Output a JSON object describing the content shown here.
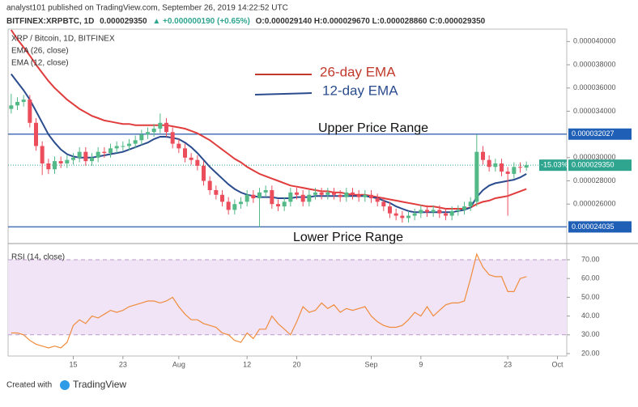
{
  "header": {
    "publisher": "analyst101 published on TradingView.com, September 26, 2019 14:22:52 UTC",
    "symbol": "BITFINEX:XRPBTC, 1D",
    "price": "0.000029350",
    "change": "▲ +0.000000190 (+0.65%)",
    "ohlc": "O:0.000029140 H:0.000029670 L:0.000028860 C:0.000029350"
  },
  "footer": {
    "created_with": "Created with",
    "brand": "TradingView"
  },
  "chart_data": [
    {
      "type": "candlestick",
      "title": "XRP / Bitcoin, 1D, BITFINEX",
      "categories": [
        null,
        null,
        null,
        null,
        null,
        null,
        null,
        null,
        null,
        null,
        "15",
        null,
        null,
        null,
        null,
        null,
        null,
        null,
        "23",
        null,
        null,
        null,
        null,
        null,
        null,
        null,
        null,
        "Aug",
        null,
        null,
        null,
        null,
        null,
        null,
        null,
        null,
        null,
        null,
        "12",
        null,
        null,
        null,
        null,
        null,
        null,
        null,
        "20",
        null,
        null,
        null,
        null,
        null,
        null,
        null,
        null,
        null,
        null,
        null,
        "Sep",
        null,
        null,
        null,
        null,
        null,
        null,
        null,
        "9",
        null,
        null,
        null,
        null,
        null,
        null,
        null,
        null,
        null,
        null,
        null,
        null,
        null,
        "23",
        null,
        null,
        null,
        null,
        null,
        null,
        null,
        "Oct",
        null
      ],
      "open": [
        3.42e-05,
        3.45e-05,
        3.48e-05,
        3.5e-05,
        3.3e-05,
        3.1e-05,
        2.95e-05,
        2.9e-05,
        2.97e-05,
        2.95e-05,
        2.98e-05,
        3e-05,
        3.05e-05,
        2.97e-05,
        3e-05,
        3.05e-05,
        3.04e-05,
        3.08e-05,
        3.1e-05,
        3.1e-05,
        3.12e-05,
        3.15e-05,
        3.2e-05,
        3.22e-05,
        3.25e-05,
        3.3e-05,
        3.22e-05,
        3.12e-05,
        3.08e-05,
        3e-05,
        2.98e-05,
        2.93e-05,
        2.8e-05,
        2.72e-05,
        2.68e-05,
        2.62e-05,
        2.55e-05,
        2.6e-05,
        2.62e-05,
        2.68e-05,
        2.65e-05,
        2.7e-05,
        2.72e-05,
        2.6e-05,
        2.58e-05,
        2.62e-05,
        2.7e-05,
        2.68e-05,
        2.62e-05,
        2.68e-05,
        2.7e-05,
        2.68e-05,
        2.7e-05,
        2.68e-05,
        2.66e-05,
        2.7e-05,
        2.68e-05,
        2.66e-05,
        2.68e-05,
        2.65e-05,
        2.62e-05,
        2.58e-05,
        2.52e-05,
        2.5e-05,
        2.48e-05,
        2.5e-05,
        2.52e-05,
        2.55e-05,
        2.53e-05,
        2.55e-05,
        2.52e-05,
        2.5e-05,
        2.54e-05,
        2.55e-05,
        2.58e-05,
        2.62e-05,
        3.05e-05,
        2.98e-05,
        2.92e-05,
        2.95e-05,
        2.88e-05,
        2.86e-05,
        2.92e-05,
        2.914e-05,
        null,
        null,
        null,
        null,
        null,
        null
      ],
      "high": [
        3.55e-05,
        3.52e-05,
        3.54e-05,
        3.54e-05,
        3.34e-05,
        3.14e-05,
        2.99e-05,
        3.01e-05,
        3.01e-05,
        3.02e-05,
        3.04e-05,
        3.09e-05,
        3.09e-05,
        3.04e-05,
        3.09e-05,
        3.09e-05,
        3.12e-05,
        3.14e-05,
        3.14e-05,
        3.16e-05,
        3.19e-05,
        3.24e-05,
        3.26e-05,
        3.29e-05,
        3.38e-05,
        3.34e-05,
        3.26e-05,
        3.16e-05,
        3.12e-05,
        3.04e-05,
        3.02e-05,
        2.97e-05,
        2.84e-05,
        2.76e-05,
        2.72e-05,
        2.66e-05,
        2.64e-05,
        2.66e-05,
        2.72e-05,
        2.72e-05,
        2.74e-05,
        2.76e-05,
        2.76e-05,
        2.64e-05,
        2.66e-05,
        2.74e-05,
        2.74e-05,
        2.72e-05,
        2.72e-05,
        2.74e-05,
        2.74e-05,
        2.74e-05,
        2.74e-05,
        2.72e-05,
        2.74e-05,
        2.74e-05,
        2.72e-05,
        2.72e-05,
        2.72e-05,
        2.69e-05,
        2.66e-05,
        2.62e-05,
        2.56e-05,
        2.54e-05,
        2.54e-05,
        2.56e-05,
        2.59e-05,
        2.59e-05,
        2.59e-05,
        2.59e-05,
        2.56e-05,
        2.58e-05,
        2.59e-05,
        2.62e-05,
        2.66e-05,
        3.2e-05,
        3.1e-05,
        3.02e-05,
        2.99e-05,
        2.99e-05,
        2.92e-05,
        2.96e-05,
        2.96e-05,
        2.967e-05,
        null,
        null,
        null,
        null,
        null,
        null
      ],
      "low": [
        3.38e-05,
        3.41e-05,
        3.44e-05,
        3.26e-05,
        3.06e-05,
        2.85e-05,
        2.86e-05,
        2.86e-05,
        2.91e-05,
        2.91e-05,
        2.94e-05,
        2.96e-05,
        2.93e-05,
        2.93e-05,
        2.96e-05,
        3e-05,
        3e-05,
        3.04e-05,
        3.06e-05,
        3.06e-05,
        3.08e-05,
        3.11e-05,
        3.16e-05,
        3.18e-05,
        3.21e-05,
        3.18e-05,
        3.08e-05,
        3.04e-05,
        2.96e-05,
        2.94e-05,
        2.89e-05,
        2.76e-05,
        2.68e-05,
        2.64e-05,
        2.58e-05,
        2.51e-05,
        2.51e-05,
        2.56e-05,
        2.58e-05,
        2.61e-05,
        2.4e-05,
        2.66e-05,
        2.56e-05,
        2.54e-05,
        2.54e-05,
        2.58e-05,
        2.64e-05,
        2.58e-05,
        2.58e-05,
        2.64e-05,
        2.64e-05,
        2.64e-05,
        2.64e-05,
        2.62e-05,
        2.62e-05,
        2.64e-05,
        2.62e-05,
        2.62e-05,
        2.61e-05,
        2.58e-05,
        2.54e-05,
        2.48e-05,
        2.46e-05,
        2.44e-05,
        2.44e-05,
        2.46e-05,
        2.48e-05,
        2.49e-05,
        2.49e-05,
        2.48e-05,
        2.46e-05,
        2.46e-05,
        2.5e-05,
        2.51e-05,
        2.54e-05,
        2.58e-05,
        2.94e-05,
        2.88e-05,
        2.88e-05,
        2.84e-05,
        2.5e-05,
        2.82e-05,
        2.87e-05,
        2.886e-05,
        null,
        null,
        null,
        null,
        null,
        null
      ],
      "close": [
        3.45e-05,
        3.48e-05,
        3.5e-05,
        3.3e-05,
        3.1e-05,
        2.95e-05,
        2.9e-05,
        2.97e-05,
        2.95e-05,
        2.98e-05,
        3e-05,
        3.05e-05,
        2.97e-05,
        3e-05,
        3.05e-05,
        3.04e-05,
        3.08e-05,
        3.1e-05,
        3.1e-05,
        3.12e-05,
        3.15e-05,
        3.2e-05,
        3.22e-05,
        3.25e-05,
        3.3e-05,
        3.22e-05,
        3.12e-05,
        3.08e-05,
        3e-05,
        2.98e-05,
        2.93e-05,
        2.8e-05,
        2.72e-05,
        2.68e-05,
        2.62e-05,
        2.55e-05,
        2.6e-05,
        2.62e-05,
        2.68e-05,
        2.65e-05,
        2.7e-05,
        2.72e-05,
        2.6e-05,
        2.58e-05,
        2.62e-05,
        2.7e-05,
        2.68e-05,
        2.62e-05,
        2.68e-05,
        2.7e-05,
        2.68e-05,
        2.7e-05,
        2.68e-05,
        2.66e-05,
        2.7e-05,
        2.68e-05,
        2.66e-05,
        2.68e-05,
        2.65e-05,
        2.62e-05,
        2.58e-05,
        2.52e-05,
        2.5e-05,
        2.48e-05,
        2.5e-05,
        2.52e-05,
        2.55e-05,
        2.53e-05,
        2.55e-05,
        2.52e-05,
        2.5e-05,
        2.54e-05,
        2.55e-05,
        2.58e-05,
        2.62e-05,
        3.05e-05,
        2.98e-05,
        2.92e-05,
        2.95e-05,
        2.88e-05,
        2.86e-05,
        2.92e-05,
        2.914e-05,
        2.935e-05,
        null,
        null,
        null,
        null,
        null,
        null
      ],
      "up_color": "#53b987",
      "down_color": "#eb4d5c",
      "series": [
        {
          "name": "EMA (26, close)",
          "color": "#e03c3c",
          "values": [
            4.1e-05,
            4.02e-05,
            3.95e-05,
            3.88e-05,
            3.8e-05,
            3.73e-05,
            3.66e-05,
            3.6e-05,
            3.55e-05,
            3.5e-05,
            3.46e-05,
            3.42e-05,
            3.39e-05,
            3.36e-05,
            3.34e-05,
            3.32e-05,
            3.31e-05,
            3.3e-05,
            3.29e-05,
            3.29e-05,
            3.28e-05,
            3.28e-05,
            3.28e-05,
            3.28e-05,
            3.28e-05,
            3.28e-05,
            3.27e-05,
            3.26e-05,
            3.25e-05,
            3.23e-05,
            3.21e-05,
            3.18e-05,
            3.15e-05,
            3.11e-05,
            3.07e-05,
            3.03e-05,
            2.99e-05,
            2.96e-05,
            2.92e-05,
            2.89e-05,
            2.86e-05,
            2.84e-05,
            2.82e-05,
            2.8e-05,
            2.78e-05,
            2.76e-05,
            2.75e-05,
            2.74e-05,
            2.73e-05,
            2.72e-05,
            2.71e-05,
            2.71e-05,
            2.7e-05,
            2.7e-05,
            2.69e-05,
            2.68e-05,
            2.68e-05,
            2.68e-05,
            2.67e-05,
            2.66e-05,
            2.65e-05,
            2.64e-05,
            2.63e-05,
            2.62e-05,
            2.61e-05,
            2.6e-05,
            2.59e-05,
            2.58e-05,
            2.58e-05,
            2.57e-05,
            2.56e-05,
            2.56e-05,
            2.56e-05,
            2.56e-05,
            2.57e-05,
            2.6e-05,
            2.62e-05,
            2.63e-05,
            2.65e-05,
            2.66e-05,
            2.67e-05,
            2.69e-05,
            2.71e-05,
            2.73e-05,
            null,
            null,
            null,
            null,
            null,
            null
          ]
        },
        {
          "name": "EMA (12, close)",
          "color": "#2a4c8e",
          "values": [
            3.72e-05,
            3.65e-05,
            3.58e-05,
            3.5e-05,
            3.4e-05,
            3.3e-05,
            3.2e-05,
            3.13e-05,
            3.07e-05,
            3.03e-05,
            3.01e-05,
            3e-05,
            3e-05,
            3e-05,
            3.01e-05,
            3.02e-05,
            3.03e-05,
            3.04e-05,
            3.05e-05,
            3.07e-05,
            3.09e-05,
            3.11e-05,
            3.13e-05,
            3.16e-05,
            3.18e-05,
            3.18e-05,
            3.17e-05,
            3.16e-05,
            3.13e-05,
            3.09e-05,
            3.04e-05,
            2.98e-05,
            2.92e-05,
            2.87e-05,
            2.82e-05,
            2.77e-05,
            2.73e-05,
            2.7e-05,
            2.68e-05,
            2.67e-05,
            2.66e-05,
            2.66e-05,
            2.66e-05,
            2.65e-05,
            2.65e-05,
            2.65e-05,
            2.66e-05,
            2.66e-05,
            2.66e-05,
            2.67e-05,
            2.67e-05,
            2.67e-05,
            2.67e-05,
            2.67e-05,
            2.67e-05,
            2.67e-05,
            2.67e-05,
            2.67e-05,
            2.66e-05,
            2.65e-05,
            2.63e-05,
            2.61e-05,
            2.58e-05,
            2.56e-05,
            2.54e-05,
            2.53e-05,
            2.53e-05,
            2.53e-05,
            2.53e-05,
            2.53e-05,
            2.53e-05,
            2.53e-05,
            2.54e-05,
            2.55e-05,
            2.57e-05,
            2.66e-05,
            2.72e-05,
            2.76e-05,
            2.78e-05,
            2.79e-05,
            2.8e-05,
            2.81e-05,
            2.83e-05,
            2.86e-05,
            null,
            null,
            null,
            null,
            null,
            null
          ]
        }
      ],
      "ylim": [
        2.267e-05,
        4.1e-05
      ],
      "yticks": [
        {
          "value": 2.6e-05,
          "label": "0.000026000"
        },
        {
          "value": 2.8e-05,
          "label": "0.000028000"
        },
        {
          "value": 3e-05,
          "label": "0.000030000"
        },
        {
          "value": 3.4e-05,
          "label": "0.000034000"
        },
        {
          "value": 3.6e-05,
          "label": "0.000036000"
        },
        {
          "value": 3.8e-05,
          "label": "0.000038000"
        },
        {
          "value": 4e-05,
          "label": "0.000040000"
        }
      ],
      "reference_lines": [
        {
          "value": 3.2027e-05,
          "label": "0.000032027",
          "text": "Upper Price Range",
          "color": "#4a72b8"
        },
        {
          "value": 2.4035e-05,
          "label": "0.000024035",
          "text": "Lower Price Range",
          "color": "#4a72b8"
        }
      ],
      "last_price": {
        "value": 2.935e-05,
        "label": "0.000029350",
        "change": "-15.03%",
        "color": "#2fa58f"
      },
      "annotations": [
        {
          "text": "26-day EMA",
          "color": "#c0392b"
        },
        {
          "text": "12-day EMA",
          "color": "#2a4c8e"
        }
      ]
    },
    {
      "type": "line",
      "title": "RSI (14, close)",
      "color": "#f08c3c",
      "band": [
        30,
        70
      ],
      "values": [
        31,
        31,
        30,
        27,
        25,
        24,
        23,
        24,
        23,
        26,
        35,
        38,
        36,
        40,
        39,
        41,
        43,
        42,
        43,
        45,
        46,
        47,
        48,
        48,
        47,
        48,
        50,
        45,
        41,
        38,
        38,
        36,
        35,
        34,
        31,
        30,
        27,
        26,
        31,
        28,
        33,
        33,
        40,
        36,
        33,
        30,
        37,
        45,
        42,
        43,
        47,
        44,
        46,
        42,
        44,
        43,
        44,
        45,
        40,
        37,
        35,
        34,
        34,
        35,
        38,
        42,
        40,
        45,
        40,
        43,
        46,
        47,
        47,
        48,
        60,
        73,
        66,
        62,
        61,
        61,
        53,
        53,
        60,
        61,
        null,
        null,
        null,
        null,
        null,
        null
      ],
      "ylim": [
        18.7,
        78.2
      ],
      "yticks": [
        {
          "value": 20,
          "label": "20.00"
        },
        {
          "value": 30,
          "label": "30.00"
        },
        {
          "value": 40,
          "label": "40.00"
        },
        {
          "value": 50,
          "label": "50.00"
        },
        {
          "value": 60,
          "label": "60.00"
        },
        {
          "value": 70,
          "label": "70.00"
        }
      ]
    }
  ]
}
